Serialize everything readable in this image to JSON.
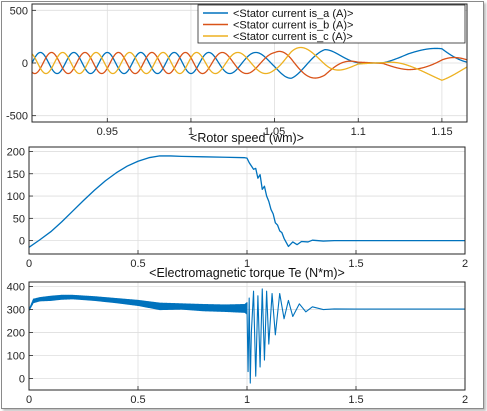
{
  "chart_data": [
    {
      "type": "line",
      "title": "",
      "xlabel": "",
      "ylabel": "",
      "xlim": [
        0.905,
        1.165
      ],
      "ylim": [
        -560,
        560
      ],
      "xticks": [
        0.95,
        1,
        1.05,
        1.1,
        1.15
      ],
      "yticks": [
        -500,
        0,
        500
      ],
      "xtick_labels": [
        "0.95",
        "1",
        "1.05",
        "1.1",
        "1.15"
      ],
      "ytick_labels": [
        "-500",
        "0",
        "500"
      ],
      "grid": true,
      "legend_position": "top-right",
      "series": [
        {
          "name": "<Stator current is_a (A)>",
          "color": "#0072bd",
          "values": [
            [
              0.905,
              100
            ],
            [
              0.93,
              100
            ],
            [
              1.0,
              100
            ],
            [
              1.05,
              100
            ],
            [
              1.06,
              150
            ],
            [
              1.08,
              140
            ],
            [
              1.1,
              10
            ],
            [
              1.115,
              -5
            ],
            [
              1.13,
              -90
            ],
            [
              1.15,
              -175
            ],
            [
              1.165,
              -40
            ]
          ],
          "freq": [
            [
              0.905,
              50
            ],
            [
              1.0,
              50
            ],
            [
              1.03,
              32
            ],
            [
              1.06,
              22
            ],
            [
              1.09,
              14
            ],
            [
              1.11,
              8
            ],
            [
              1.165,
              7
            ]
          ],
          "phase": 0
        },
        {
          "name": "<Stator current is_b (A)>",
          "color": "#d95319",
          "values": [
            [
              0.905,
              100
            ],
            [
              0.93,
              100
            ],
            [
              1.0,
              100
            ],
            [
              1.05,
              100
            ],
            [
              1.06,
              150
            ],
            [
              1.08,
              140
            ],
            [
              1.1,
              10
            ],
            [
              1.115,
              -5
            ],
            [
              1.13,
              -90
            ],
            [
              1.15,
              -175
            ],
            [
              1.165,
              -40
            ]
          ],
          "freq": [
            [
              0.905,
              50
            ],
            [
              1.0,
              50
            ],
            [
              1.03,
              32
            ],
            [
              1.06,
              22
            ],
            [
              1.09,
              14
            ],
            [
              1.11,
              8
            ],
            [
              1.165,
              7
            ]
          ],
          "phase": -2.094
        },
        {
          "name": "<Stator current is_c (A)>",
          "color": "#edb120",
          "values": [
            [
              0.905,
              100
            ],
            [
              0.93,
              100
            ],
            [
              1.0,
              100
            ],
            [
              1.05,
              100
            ],
            [
              1.06,
              150
            ],
            [
              1.08,
              140
            ],
            [
              1.1,
              10
            ],
            [
              1.115,
              -5
            ],
            [
              1.13,
              -90
            ],
            [
              1.15,
              -175
            ],
            [
              1.165,
              -40
            ]
          ],
          "freq": [
            [
              0.905,
              50
            ],
            [
              1.0,
              50
            ],
            [
              1.03,
              32
            ],
            [
              1.06,
              22
            ],
            [
              1.09,
              14
            ],
            [
              1.11,
              8
            ],
            [
              1.165,
              7
            ]
          ],
          "phase": 2.094
        }
      ]
    },
    {
      "type": "line",
      "title": "<Rotor speed (wm)>",
      "xlabel": "",
      "ylabel": "",
      "xlim": [
        0,
        2
      ],
      "ylim": [
        -30,
        210
      ],
      "xticks": [
        0,
        0.5,
        1,
        1.5,
        2
      ],
      "yticks": [
        0,
        50,
        100,
        150,
        200
      ],
      "xtick_labels": [
        "0",
        "0.5",
        "1",
        "1.5",
        "2"
      ],
      "ytick_labels": [
        "0",
        "50",
        "100",
        "150",
        "200"
      ],
      "grid": true,
      "series": [
        {
          "name": "",
          "color": "#0072bd",
          "points": [
            [
              0,
              -15
            ],
            [
              0.05,
              2
            ],
            [
              0.1,
              20
            ],
            [
              0.15,
              42
            ],
            [
              0.2,
              66
            ],
            [
              0.25,
              90
            ],
            [
              0.3,
              113
            ],
            [
              0.35,
              134
            ],
            [
              0.4,
              152
            ],
            [
              0.45,
              167
            ],
            [
              0.5,
              178
            ],
            [
              0.55,
              186
            ],
            [
              0.6,
              190
            ],
            [
              0.65,
              190
            ],
            [
              0.7,
              189
            ],
            [
              0.8,
              188
            ],
            [
              0.9,
              187
            ],
            [
              0.99,
              186
            ],
            [
              1.0,
              185
            ],
            [
              1.01,
              175
            ],
            [
              1.03,
              160
            ],
            [
              1.04,
              162
            ],
            [
              1.05,
              140
            ],
            [
              1.06,
              148
            ],
            [
              1.07,
              115
            ],
            [
              1.08,
              122
            ],
            [
              1.09,
              100
            ],
            [
              1.1,
              88
            ],
            [
              1.11,
              70
            ],
            [
              1.12,
              60
            ],
            [
              1.13,
              40
            ],
            [
              1.14,
              35
            ],
            [
              1.15,
              22
            ],
            [
              1.16,
              18
            ],
            [
              1.17,
              5
            ],
            [
              1.19,
              -13
            ],
            [
              1.21,
              -3
            ],
            [
              1.23,
              -9
            ],
            [
              1.25,
              -2
            ],
            [
              1.28,
              -3
            ],
            [
              1.3,
              1
            ],
            [
              1.35,
              -1
            ],
            [
              1.4,
              0
            ],
            [
              1.5,
              0
            ],
            [
              1.75,
              0
            ],
            [
              2.0,
              0
            ]
          ]
        }
      ]
    },
    {
      "type": "line",
      "title": "<Electromagnetic torque Te (N*m)>",
      "xlabel": "",
      "ylabel": "",
      "xlim": [
        0,
        2
      ],
      "ylim": [
        -50,
        420
      ],
      "xticks": [
        0,
        0.5,
        1,
        1.5,
        2
      ],
      "yticks": [
        0,
        100,
        200,
        300,
        400
      ],
      "xtick_labels": [
        "0",
        "0.5",
        "1",
        "1.5",
        "2"
      ],
      "ytick_labels": [
        "0",
        "100",
        "200",
        "300",
        "400"
      ],
      "grid": true,
      "series": [
        {
          "name": "",
          "color": "#0072bd",
          "envelope": [
            [
              0.0,
              295,
              300
            ],
            [
              0.02,
              330,
              345
            ],
            [
              0.05,
              338,
              352
            ],
            [
              0.1,
              340,
              358
            ],
            [
              0.15,
              345,
              362
            ],
            [
              0.2,
              347,
              362
            ],
            [
              0.3,
              340,
              356
            ],
            [
              0.4,
              330,
              348
            ],
            [
              0.5,
              318,
              340
            ],
            [
              0.6,
              300,
              328
            ],
            [
              0.7,
              302,
              325
            ],
            [
              0.8,
              295,
              322
            ],
            [
              0.9,
              292,
              320
            ],
            [
              0.99,
              288,
              322
            ],
            [
              1.0,
              280,
              330
            ]
          ],
          "tail": [
            [
              1.0,
              300
            ],
            [
              1.005,
              30
            ],
            [
              1.01,
              350
            ],
            [
              1.015,
              -20
            ],
            [
              1.02,
              200
            ],
            [
              1.03,
              380
            ],
            [
              1.04,
              10
            ],
            [
              1.05,
              360
            ],
            [
              1.06,
              50
            ],
            [
              1.07,
              390
            ],
            [
              1.08,
              80
            ],
            [
              1.09,
              380
            ],
            [
              1.1,
              150
            ],
            [
              1.115,
              370
            ],
            [
              1.13,
              190
            ],
            [
              1.15,
              370
            ],
            [
              1.17,
              260
            ],
            [
              1.19,
              340
            ],
            [
              1.21,
              270
            ],
            [
              1.24,
              325
            ],
            [
              1.27,
              290
            ],
            [
              1.3,
              312
            ],
            [
              1.35,
              300
            ],
            [
              1.4,
              303
            ],
            [
              1.5,
              302
            ],
            [
              2.0,
              302
            ]
          ]
        }
      ]
    },
    {
      "legend_entries": [
        {
          "label": "<Stator current is_a (A)>",
          "color": "#0072bd"
        },
        {
          "label": "<Stator current is_b (A)>",
          "color": "#d95319"
        },
        {
          "label": "<Stator current is_c (A)>",
          "color": "#edb120"
        }
      ]
    }
  ]
}
